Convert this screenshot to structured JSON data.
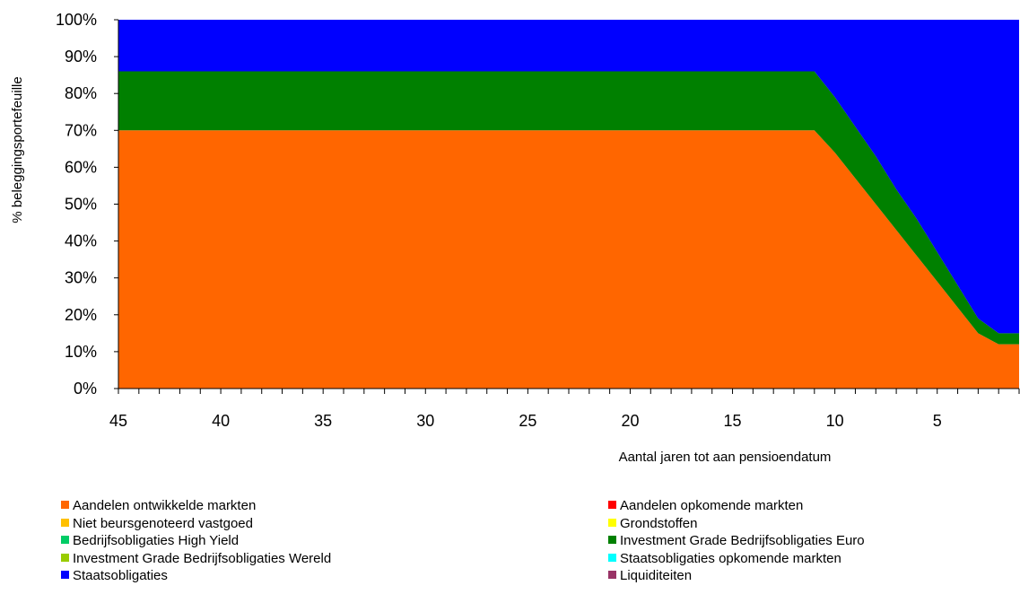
{
  "chart_data": {
    "type": "area",
    "stacked": true,
    "percent": true,
    "xlabel": "Aantal jaren tot aan pensioendatum",
    "ylabel": "% beleggingsportefeuille",
    "x": [
      45,
      44,
      43,
      42,
      41,
      40,
      39,
      38,
      37,
      36,
      35,
      34,
      33,
      32,
      31,
      30,
      29,
      28,
      27,
      26,
      25,
      24,
      23,
      22,
      21,
      20,
      19,
      18,
      17,
      16,
      15,
      14,
      13,
      12,
      11,
      10,
      9,
      8,
      7,
      6,
      5,
      4,
      3,
      2,
      1
    ],
    "xlim": [
      45,
      1
    ],
    "x_ticks": [
      "45",
      "40",
      "35",
      "30",
      "25",
      "20",
      "15",
      "10",
      "5"
    ],
    "x_tick_values": [
      45,
      40,
      35,
      30,
      25,
      20,
      15,
      10,
      5
    ],
    "ylim": [
      0,
      100
    ],
    "y_ticks": [
      "0%",
      "10%",
      "20%",
      "30%",
      "40%",
      "50%",
      "60%",
      "70%",
      "80%",
      "90%",
      "100%"
    ],
    "y_tick_values": [
      0,
      10,
      20,
      30,
      40,
      50,
      60,
      70,
      80,
      90,
      100
    ],
    "grid": false,
    "legend_position": "bottom",
    "series": [
      {
        "name": "Aandelen ontwikkelde markten",
        "color": "#FF6600",
        "values": [
          70,
          70,
          70,
          70,
          70,
          70,
          70,
          70,
          70,
          70,
          70,
          70,
          70,
          70,
          70,
          70,
          70,
          70,
          70,
          70,
          70,
          70,
          70,
          70,
          70,
          70,
          70,
          70,
          70,
          70,
          70,
          70,
          70,
          70,
          70,
          64,
          57,
          50,
          43,
          36,
          29,
          22,
          15,
          12,
          12
        ]
      },
      {
        "name": "Aandelen opkomende markten",
        "color": "#FF0000",
        "values": [
          0,
          0,
          0,
          0,
          0,
          0,
          0,
          0,
          0,
          0,
          0,
          0,
          0,
          0,
          0,
          0,
          0,
          0,
          0,
          0,
          0,
          0,
          0,
          0,
          0,
          0,
          0,
          0,
          0,
          0,
          0,
          0,
          0,
          0,
          0,
          0,
          0,
          0,
          0,
          0,
          0,
          0,
          0,
          0,
          0
        ]
      },
      {
        "name": "Niet beursgenoteerd vastgoed",
        "color": "#FFC000",
        "values": [
          0,
          0,
          0,
          0,
          0,
          0,
          0,
          0,
          0,
          0,
          0,
          0,
          0,
          0,
          0,
          0,
          0,
          0,
          0,
          0,
          0,
          0,
          0,
          0,
          0,
          0,
          0,
          0,
          0,
          0,
          0,
          0,
          0,
          0,
          0,
          0,
          0,
          0,
          0,
          0,
          0,
          0,
          0,
          0,
          0
        ]
      },
      {
        "name": "Grondstoffen",
        "color": "#FFFF00",
        "values": [
          0,
          0,
          0,
          0,
          0,
          0,
          0,
          0,
          0,
          0,
          0,
          0,
          0,
          0,
          0,
          0,
          0,
          0,
          0,
          0,
          0,
          0,
          0,
          0,
          0,
          0,
          0,
          0,
          0,
          0,
          0,
          0,
          0,
          0,
          0,
          0,
          0,
          0,
          0,
          0,
          0,
          0,
          0,
          0,
          0
        ]
      },
      {
        "name": "Bedrijfsobligaties High Yield",
        "color": "#00CC66",
        "values": [
          0,
          0,
          0,
          0,
          0,
          0,
          0,
          0,
          0,
          0,
          0,
          0,
          0,
          0,
          0,
          0,
          0,
          0,
          0,
          0,
          0,
          0,
          0,
          0,
          0,
          0,
          0,
          0,
          0,
          0,
          0,
          0,
          0,
          0,
          0,
          0,
          0,
          0,
          0,
          0,
          0,
          0,
          0,
          0,
          0
        ]
      },
      {
        "name": "Investment Grade Bedrijfsobligaties Euro",
        "color": "#008000",
        "values": [
          16,
          16,
          16,
          16,
          16,
          16,
          16,
          16,
          16,
          16,
          16,
          16,
          16,
          16,
          16,
          16,
          16,
          16,
          16,
          16,
          16,
          16,
          16,
          16,
          16,
          16,
          16,
          16,
          16,
          16,
          16,
          16,
          16,
          16,
          16,
          15,
          14,
          13,
          11,
          10,
          8,
          6,
          4,
          3,
          3
        ]
      },
      {
        "name": "Investment Grade Bedrijfsobligaties Wereld",
        "color": "#99CC00",
        "values": [
          0,
          0,
          0,
          0,
          0,
          0,
          0,
          0,
          0,
          0,
          0,
          0,
          0,
          0,
          0,
          0,
          0,
          0,
          0,
          0,
          0,
          0,
          0,
          0,
          0,
          0,
          0,
          0,
          0,
          0,
          0,
          0,
          0,
          0,
          0,
          0,
          0,
          0,
          0,
          0,
          0,
          0,
          0,
          0,
          0
        ]
      },
      {
        "name": "Staatsobligaties opkomende markten",
        "color": "#00FFFF",
        "values": [
          0,
          0,
          0,
          0,
          0,
          0,
          0,
          0,
          0,
          0,
          0,
          0,
          0,
          0,
          0,
          0,
          0,
          0,
          0,
          0,
          0,
          0,
          0,
          0,
          0,
          0,
          0,
          0,
          0,
          0,
          0,
          0,
          0,
          0,
          0,
          0,
          0,
          0,
          0,
          0,
          0,
          0,
          0,
          0,
          0
        ]
      },
      {
        "name": "Staatsobligaties",
        "color": "#0000FF",
        "values": [
          14,
          14,
          14,
          14,
          14,
          14,
          14,
          14,
          14,
          14,
          14,
          14,
          14,
          14,
          14,
          14,
          14,
          14,
          14,
          14,
          14,
          14,
          14,
          14,
          14,
          14,
          14,
          14,
          14,
          14,
          14,
          14,
          14,
          14,
          14,
          21,
          29,
          37,
          46,
          54,
          63,
          72,
          81,
          85,
          85
        ]
      },
      {
        "name": "Liquiditeiten",
        "color": "#993366",
        "values": [
          0,
          0,
          0,
          0,
          0,
          0,
          0,
          0,
          0,
          0,
          0,
          0,
          0,
          0,
          0,
          0,
          0,
          0,
          0,
          0,
          0,
          0,
          0,
          0,
          0,
          0,
          0,
          0,
          0,
          0,
          0,
          0,
          0,
          0,
          0,
          0,
          0,
          0,
          0,
          0,
          0,
          0,
          0,
          0,
          0
        ]
      }
    ]
  }
}
